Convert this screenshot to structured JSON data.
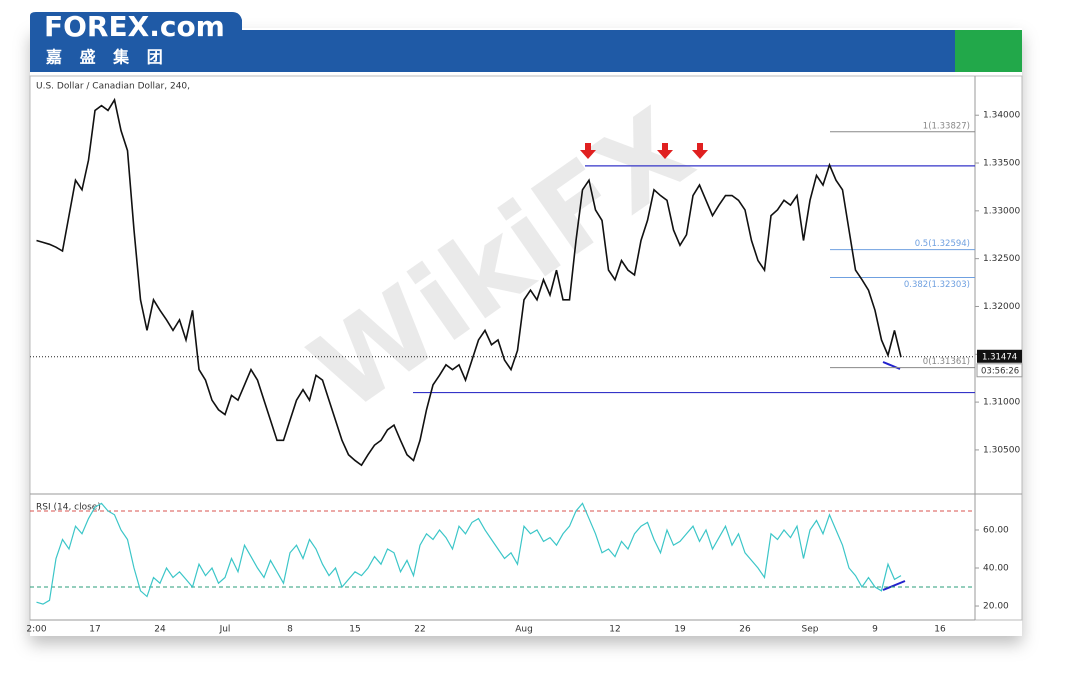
{
  "header": {
    "logo": "FOREX.com",
    "logo_sub": "嘉 盛 集 团"
  },
  "watermark": "WikiFX",
  "chart_data": [
    {
      "type": "line",
      "title": "U.S. Dollar / Canadian Dollar, 240,",
      "color": "#111111",
      "categories": [
        "2:00",
        null,
        null,
        null,
        null,
        null,
        null,
        null,
        null,
        "17",
        null,
        null,
        null,
        null,
        null,
        null,
        null,
        null,
        null,
        "24",
        null,
        null,
        null,
        null,
        null,
        null,
        null,
        null,
        null,
        "Jul",
        null,
        null,
        null,
        null,
        null,
        null,
        null,
        null,
        null,
        "8",
        null,
        null,
        null,
        null,
        null,
        null,
        null,
        null,
        null,
        "15",
        null,
        null,
        null,
        null,
        null,
        null,
        null,
        null,
        null,
        "22",
        null,
        null,
        null,
        null,
        null,
        null,
        null,
        null,
        null,
        null,
        null,
        null,
        null,
        null,
        null,
        "Aug",
        null,
        null,
        null,
        null,
        null,
        null,
        null,
        null,
        null,
        null,
        null,
        null,
        null,
        "12",
        null,
        null,
        null,
        null,
        null,
        null,
        null,
        null,
        null,
        "19",
        null,
        null,
        null,
        null,
        null,
        null,
        null,
        null,
        null,
        "26",
        null,
        null,
        null,
        null,
        null,
        null,
        null,
        null,
        null,
        "Sep",
        null,
        null,
        null,
        null,
        null,
        null,
        null,
        null,
        null,
        "9",
        null,
        null,
        null,
        null,
        null,
        null,
        null,
        null,
        null,
        "16",
        null,
        null
      ],
      "values": [
        1.3269,
        1.3267,
        1.3265,
        1.3262,
        1.3258,
        1.3295,
        1.3332,
        1.3322,
        1.3353,
        1.3405,
        1.341,
        1.3405,
        1.3416,
        1.3384,
        1.3363,
        1.328,
        1.3207,
        1.3175,
        1.3207,
        1.3196,
        1.3186,
        1.3175,
        1.3186,
        1.3165,
        1.3196,
        1.3134,
        1.3123,
        1.3102,
        1.3092,
        1.3087,
        1.3107,
        1.3102,
        1.3118,
        1.3134,
        1.3123,
        1.3102,
        1.3081,
        1.306,
        1.306,
        1.3081,
        1.3102,
        1.3113,
        1.3102,
        1.3128,
        1.3123,
        1.3102,
        1.3081,
        1.306,
        1.3045,
        1.3039,
        1.3034,
        1.3045,
        1.3055,
        1.306,
        1.3071,
        1.3076,
        1.306,
        1.3045,
        1.3039,
        1.306,
        1.3092,
        1.3118,
        1.3128,
        1.3139,
        1.3134,
        1.3139,
        1.3123,
        1.3144,
        1.3165,
        1.3175,
        1.316,
        1.3165,
        1.3144,
        1.3134,
        1.3154,
        1.3207,
        1.3217,
        1.3207,
        1.3228,
        1.3212,
        1.3238,
        1.3207,
        1.3207,
        1.3269,
        1.3322,
        1.3332,
        1.3301,
        1.329,
        1.3238,
        1.3228,
        1.3248,
        1.3238,
        1.3233,
        1.3269,
        1.329,
        1.3322,
        1.3316,
        1.3311,
        1.328,
        1.3264,
        1.3275,
        1.3316,
        1.3327,
        1.3311,
        1.3295,
        1.3306,
        1.3316,
        1.3316,
        1.3311,
        1.3301,
        1.3269,
        1.3248,
        1.3238,
        1.3295,
        1.3301,
        1.3311,
        1.3306,
        1.3316,
        1.3269,
        1.3311,
        1.3337,
        1.3327,
        1.3348,
        1.3332,
        1.3322,
        1.328,
        1.3238,
        1.3228,
        1.3217,
        1.3196,
        1.3165,
        1.3149,
        1.3175,
        1.3147,
        null,
        null,
        null,
        null,
        null,
        null,
        null,
        null
      ],
      "ylim": [
        1.3006,
        1.3441
      ],
      "yticks": [
        {
          "value": 1.305,
          "label": "1.30500"
        },
        {
          "value": 1.31,
          "label": "1.31000"
        },
        {
          "value": 1.315,
          "label": "1.31500"
        },
        {
          "value": 1.32,
          "label": "1.32000"
        },
        {
          "value": 1.325,
          "label": "1.32500"
        },
        {
          "value": 1.33,
          "label": "1.33000"
        },
        {
          "value": 1.335,
          "label": "1.33500"
        },
        {
          "value": 1.34,
          "label": "1.34000"
        }
      ],
      "horizontal_lines": [
        1.3347,
        1.311
      ],
      "line_color": "#3434c8",
      "fib_levels": [
        {
          "value": 1.33827,
          "label": "1(1.33827)",
          "color": "#888888"
        },
        {
          "value": 1.32594,
          "label": "0.5(1.32594)",
          "color": "#6fa0e0"
        },
        {
          "value": 1.32303,
          "label": "0.382(1.32303)",
          "color": "#6fa0e0"
        },
        {
          "value": 1.31361,
          "label": "0(1.31361)",
          "color": "#888888"
        }
      ],
      "last_price": {
        "value": 1.31474,
        "label": "1.31474"
      },
      "countdown": "03:56:26"
    },
    {
      "type": "line",
      "title": "RSI (14, close)",
      "color": "#3cc6c8",
      "values": [
        22,
        21,
        23,
        45,
        55,
        50,
        62,
        58,
        66,
        72,
        74,
        70,
        68,
        60,
        55,
        40,
        28,
        25,
        35,
        32,
        40,
        35,
        38,
        34,
        30,
        42,
        36,
        40,
        32,
        35,
        45,
        38,
        52,
        46,
        40,
        35,
        44,
        38,
        32,
        48,
        52,
        45,
        55,
        50,
        42,
        36,
        40,
        30,
        34,
        38,
        36,
        40,
        46,
        42,
        50,
        48,
        38,
        44,
        36,
        52,
        58,
        55,
        60,
        56,
        50,
        62,
        58,
        64,
        66,
        60,
        55,
        50,
        45,
        48,
        42,
        62,
        58,
        60,
        54,
        56,
        52,
        58,
        62,
        70,
        74,
        66,
        58,
        48,
        50,
        46,
        54,
        50,
        58,
        62,
        64,
        55,
        48,
        60,
        52,
        54,
        58,
        62,
        54,
        60,
        50,
        56,
        62,
        52,
        58,
        48,
        44,
        40,
        35,
        58,
        55,
        60,
        56,
        62,
        45,
        60,
        65,
        58,
        68,
        60,
        52,
        40,
        36,
        30,
        35,
        30,
        28,
        42,
        34,
        36,
        null,
        null,
        null,
        null,
        null,
        null,
        null,
        null
      ],
      "ylim": [
        13.7,
        78.4
      ],
      "yticks": [
        {
          "value": 20,
          "label": "20.00"
        },
        {
          "value": 40,
          "label": "40.00"
        },
        {
          "value": 60,
          "label": "60.00"
        }
      ],
      "bands": [
        30,
        70
      ],
      "band_colors": [
        "#2a9d7a",
        "#d9534f"
      ]
    }
  ]
}
